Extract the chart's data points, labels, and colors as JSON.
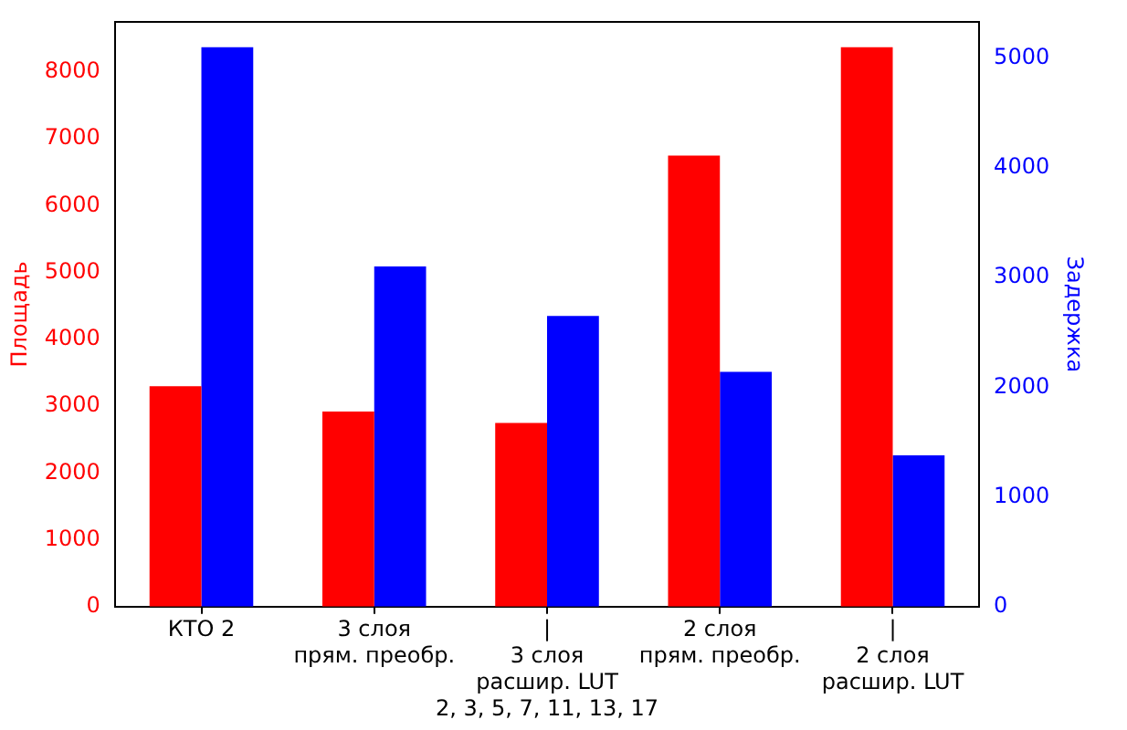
{
  "chart_data": {
    "type": "bar",
    "ylabel": "Площадь",
    "y2label": "Задержка",
    "categories": [
      "КТО 2",
      "3 слоя\nпрям. преобр.",
      "|\n3 слоя\nрасшир. LUT\n2, 3, 5, 7, 11, 13, 17",
      "2 слоя\nпрям. преобр.",
      "|\n2 слоя\nрасшир. LUT"
    ],
    "series": [
      {
        "color": "#ff0000",
        "values": [
          3300,
          2920,
          2750,
          6750,
          8370
        ]
      },
      {
        "color": "#0000ff",
        "axis": "y2",
        "values": [
          5100,
          3100,
          2650,
          2140,
          1380
        ]
      }
    ],
    "ylim": [
      0,
      8750
    ],
    "yticks": [
      0,
      1000,
      2000,
      3000,
      4000,
      5000,
      6000,
      7000,
      8000
    ],
    "y2lim": [
      0,
      5330
    ],
    "y2ticks": [
      0,
      1000,
      2000,
      3000,
      4000,
      5000
    ],
    "grid": false,
    "legend": false
  }
}
